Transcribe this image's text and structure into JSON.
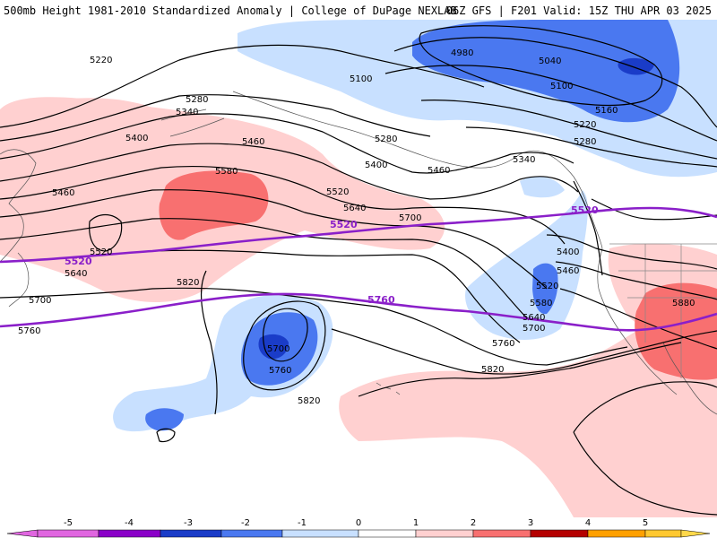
{
  "header": {
    "title_left": "500mb Height 1981-2010 Standardized Anomaly | College of DuPage NEXLAB",
    "title_right": "06Z GFS | F201 Valid: 15Z THU APR 03 2025"
  },
  "colors": {
    "neg5": "#e066e0",
    "neg4": "#8a00c8",
    "neg3": "#1a3cc8",
    "neg2": "#4a78f0",
    "neg1": "#c8e0ff",
    "zero": "#ffffff",
    "pos1": "#ffd0d0",
    "pos2": "#f87070",
    "pos3": "#e02828",
    "pos4": "#b40000",
    "pos5": "#ffa000",
    "contour": "#000000",
    "highlight": "#8a1fc9"
  },
  "contour_labels": [
    {
      "text": "5220"
    },
    {
      "text": "5280"
    },
    {
      "text": "5340"
    },
    {
      "text": "5400"
    },
    {
      "text": "5460"
    },
    {
      "text": "5580"
    },
    {
      "text": "5460"
    },
    {
      "text": "5520"
    },
    {
      "text": "5640"
    },
    {
      "text": "5700"
    },
    {
      "text": "5820"
    },
    {
      "text": "5760"
    },
    {
      "text": "5700"
    },
    {
      "text": "5760"
    },
    {
      "text": "5820"
    },
    {
      "text": "4980"
    },
    {
      "text": "5100"
    },
    {
      "text": "5040"
    },
    {
      "text": "5100"
    },
    {
      "text": "5160"
    },
    {
      "text": "5220"
    },
    {
      "text": "5280"
    },
    {
      "text": "5280"
    },
    {
      "text": "5400"
    },
    {
      "text": "5460"
    },
    {
      "text": "5340"
    },
    {
      "text": "5520"
    },
    {
      "text": "5640"
    },
    {
      "text": "5700"
    },
    {
      "text": "5400"
    },
    {
      "text": "5460"
    },
    {
      "text": "5520"
    },
    {
      "text": "5580"
    },
    {
      "text": "5640"
    },
    {
      "text": "5700"
    },
    {
      "text": "5760"
    },
    {
      "text": "5820"
    },
    {
      "text": "5880"
    }
  ],
  "highlight_labels": [
    {
      "text": "5520"
    },
    {
      "text": "5520"
    },
    {
      "text": "5520"
    },
    {
      "text": "5760"
    }
  ],
  "colorbar": {
    "ticks": [
      "-5",
      "-4",
      "-3",
      "-2",
      "-1",
      "0",
      "1",
      "2",
      "3",
      "4",
      "5"
    ]
  }
}
